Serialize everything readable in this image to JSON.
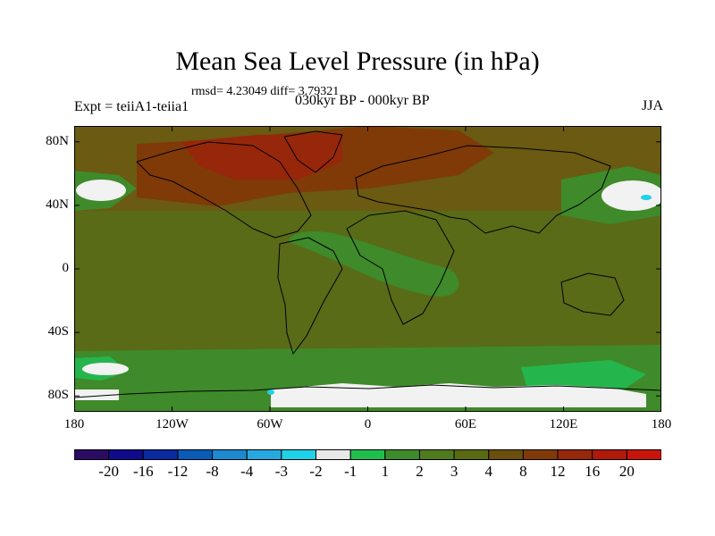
{
  "title": "Mean Sea Level Pressure (in hPa)",
  "stats": "rmsd= 4.23049 diff= 3.79321",
  "experiment": "Expt = teiiA1-teiia1",
  "period": "030kyr BP - 000kyr BP",
  "season": "JJA",
  "lat_labels": [
    {
      "text": "80N",
      "lat": 80
    },
    {
      "text": "40N",
      "lat": 40
    },
    {
      "text": "0",
      "lat": 0
    },
    {
      "text": "40S",
      "lat": -40
    },
    {
      "text": "80S",
      "lat": -80
    }
  ],
  "lon_labels": [
    {
      "text": "180",
      "lon": -180
    },
    {
      "text": "120W",
      "lon": -120
    },
    {
      "text": "60W",
      "lon": -60
    },
    {
      "text": "0",
      "lon": 0
    },
    {
      "text": "60E",
      "lon": 60
    },
    {
      "text": "120E",
      "lon": 120
    },
    {
      "text": "180",
      "lon": 180
    }
  ],
  "colorbar": {
    "colors": [
      "#2c0b63",
      "#100a8c",
      "#0b2aa0",
      "#0a5bb5",
      "#1c8ad0",
      "#26a9e0",
      "#1fd2e8",
      "#e8e8e8",
      "#1fbe4e",
      "#3f8a2a",
      "#4f7a1e",
      "#5a6a12",
      "#6b4f0c",
      "#7f3a08",
      "#96270a",
      "#b01a0a",
      "#c8140a"
    ],
    "labels": [
      "-20",
      "-16",
      "-12",
      "-8",
      "-4",
      "-3",
      "-2",
      "-1",
      "1",
      "2",
      "3",
      "4",
      "8",
      "12",
      "16",
      "20"
    ]
  },
  "colors": {
    "base": "#6a5a12",
    "ocean": "#596b17",
    "green": "#3f8a2a",
    "bright_green": "#24b64c",
    "warm": "#7f3a08",
    "hot": "#96270a",
    "white": "#f2f2f2",
    "cyan": "#1fd2e8"
  }
}
